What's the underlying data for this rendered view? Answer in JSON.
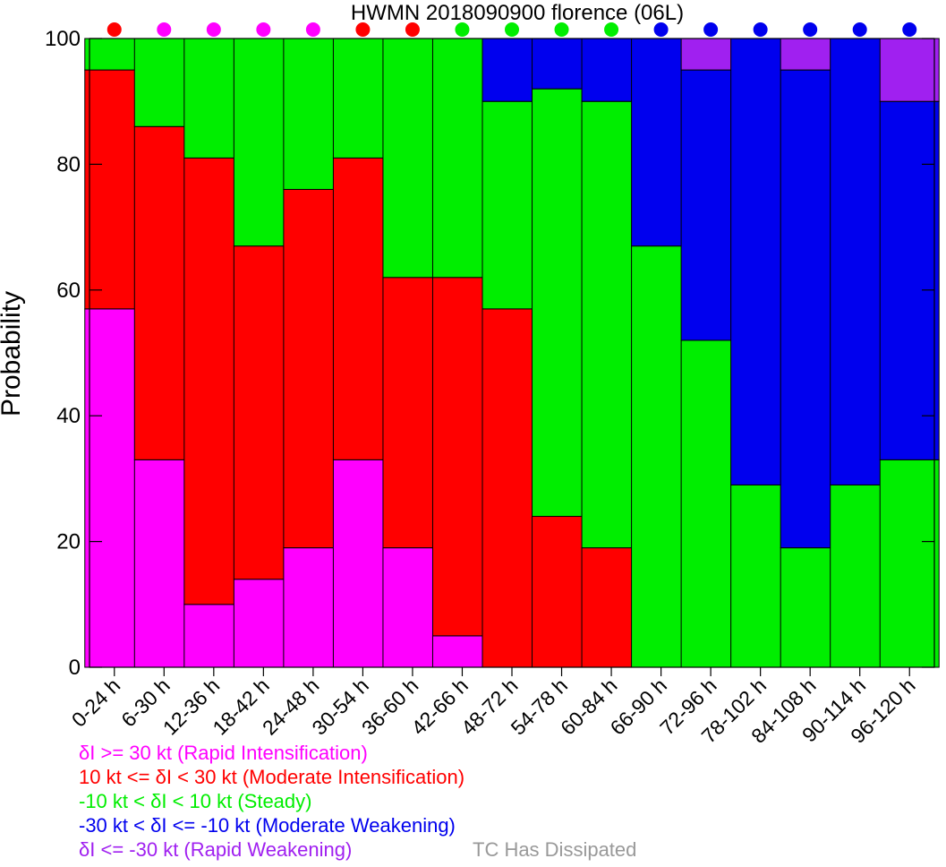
{
  "chart_data": {
    "type": "bar",
    "stacked": true,
    "title": "HWMN 2018090900 florence (06L)",
    "ylabel": "Probability",
    "xlabel": "",
    "ylim": [
      0,
      100
    ],
    "yticks": [
      0,
      20,
      40,
      60,
      80,
      100
    ],
    "grid": false,
    "categories": [
      "0-24 h",
      "6-30 h",
      "12-36 h",
      "18-42 h",
      "24-48 h",
      "30-54 h",
      "36-60 h",
      "42-66 h",
      "48-72 h",
      "54-78 h",
      "60-84 h",
      "66-90 h",
      "72-96 h",
      "78-102 h",
      "84-108 h",
      "90-114 h",
      "96-120 h"
    ],
    "series": [
      {
        "name": "δI >= 30 kt (Rapid Intensification)",
        "color": "#ff00ff",
        "values": [
          57,
          33,
          10,
          14,
          19,
          33,
          19,
          5,
          0,
          0,
          0,
          0,
          0,
          0,
          0,
          0,
          0
        ]
      },
      {
        "name": "10 kt <= δI < 30 kt (Moderate Intensification)",
        "color": "#ff0000",
        "values": [
          38,
          53,
          71,
          53,
          57,
          48,
          43,
          57,
          57,
          24,
          19,
          0,
          0,
          0,
          0,
          0,
          0
        ]
      },
      {
        "name": "-10 kt < δI < 10 kt (Steady)",
        "color": "#00ee00",
        "values": [
          5,
          14,
          19,
          33,
          24,
          19,
          38,
          38,
          33,
          68,
          71,
          67,
          52,
          29,
          19,
          29,
          33
        ]
      },
      {
        "name": "-30 kt < δI <= -10 kt (Moderate Weakening)",
        "color": "#0000ee",
        "values": [
          0,
          0,
          0,
          0,
          0,
          0,
          0,
          0,
          10,
          8,
          10,
          33,
          43,
          71,
          76,
          71,
          57
        ]
      },
      {
        "name": "δI <= -30 kt (Rapid Weakening)",
        "color": "#a020f0",
        "values": [
          0,
          0,
          0,
          0,
          0,
          0,
          0,
          0,
          0,
          0,
          0,
          0,
          5,
          0,
          5,
          0,
          10
        ]
      }
    ],
    "top_markers": [
      "#ff0000",
      "#ff00ff",
      "#ff00ff",
      "#ff00ff",
      "#ff00ff",
      "#ff0000",
      "#ff0000",
      "#00ee00",
      "#00ee00",
      "#00ee00",
      "#00ee00",
      "#0000ee",
      "#0000ee",
      "#0000ee",
      "#0000ee",
      "#0000ee",
      "#0000ee"
    ],
    "legend_position": "bottom-left",
    "extra_legend": {
      "text": "TC Has Dissipated",
      "color": "#999999"
    }
  }
}
